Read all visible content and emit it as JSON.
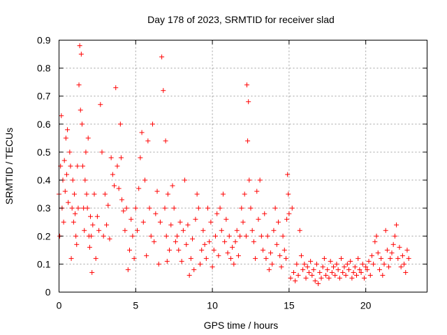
{
  "chart_data": {
    "type": "scatter",
    "title": "Day 178 of 2023, SRMTID for receiver slad",
    "xlabel": "GPS time / hours",
    "ylabel": "SRMTID / TECUs",
    "xlim": [
      0,
      24
    ],
    "ylim": [
      0,
      0.9
    ],
    "xticks": [
      0,
      5,
      10,
      15,
      20
    ],
    "xtick_labels": [
      "0",
      "5",
      "10",
      "15",
      "20"
    ],
    "yticks": [
      0,
      0.1,
      0.2,
      0.3,
      0.4,
      0.5,
      0.6,
      0.7,
      0.8,
      0.9
    ],
    "ytick_labels": [
      "0",
      "0.1",
      "0.2",
      "0.3",
      "0.4",
      "0.5",
      "0.6",
      "0.7",
      "0.8",
      "0.9"
    ],
    "grid": true,
    "marker": "+",
    "color": "#ff0000",
    "series": [
      {
        "name": "SRMTID",
        "x": [
          0.0,
          0.05,
          0.1,
          0.15,
          0.2,
          0.25,
          0.3,
          0.35,
          0.4,
          0.45,
          0.5,
          0.55,
          0.6,
          0.7,
          0.75,
          0.8,
          0.85,
          0.9,
          0.95,
          1.0,
          1.05,
          1.1,
          1.15,
          1.2,
          1.25,
          1.3,
          1.35,
          1.4,
          1.45,
          1.5,
          1.55,
          1.6,
          1.65,
          1.7,
          1.75,
          1.8,
          1.85,
          1.9,
          1.95,
          2.0,
          2.05,
          2.1,
          2.15,
          2.2,
          2.3,
          2.4,
          2.5,
          2.6,
          2.7,
          2.8,
          2.9,
          3.0,
          3.1,
          3.2,
          3.3,
          3.4,
          3.5,
          3.6,
          3.7,
          3.8,
          3.9,
          4.0,
          4.05,
          4.1,
          4.2,
          4.3,
          4.4,
          4.5,
          4.6,
          4.7,
          4.8,
          4.9,
          5.0,
          5.1,
          5.2,
          5.3,
          5.4,
          5.5,
          5.6,
          5.7,
          5.8,
          5.9,
          6.0,
          6.1,
          6.2,
          6.3,
          6.4,
          6.5,
          6.6,
          6.7,
          6.8,
          6.9,
          6.95,
          7.0,
          7.05,
          7.1,
          7.2,
          7.3,
          7.4,
          7.5,
          7.6,
          7.7,
          7.8,
          7.9,
          8.0,
          8.1,
          8.2,
          8.3,
          8.4,
          8.5,
          8.6,
          8.7,
          8.8,
          8.9,
          9.0,
          9.1,
          9.2,
          9.3,
          9.4,
          9.5,
          9.6,
          9.7,
          9.8,
          9.9,
          10.0,
          10.1,
          10.2,
          10.3,
          10.4,
          10.5,
          10.6,
          10.7,
          10.8,
          10.9,
          11.0,
          11.1,
          11.2,
          11.3,
          11.4,
          11.5,
          11.6,
          11.7,
          11.8,
          11.9,
          12.0,
          12.1,
          12.2,
          12.25,
          12.3,
          12.35,
          12.4,
          12.5,
          12.6,
          12.7,
          12.8,
          12.9,
          13.0,
          13.1,
          13.2,
          13.3,
          13.4,
          13.5,
          13.6,
          13.7,
          13.8,
          13.9,
          14.0,
          14.1,
          14.2,
          14.3,
          14.4,
          14.5,
          14.6,
          14.7,
          14.8,
          14.85,
          14.9,
          14.95,
          15.0,
          15.1,
          15.2,
          15.3,
          15.4,
          15.5,
          15.6,
          15.7,
          15.8,
          15.9,
          16.0,
          16.1,
          16.2,
          16.3,
          16.4,
          16.5,
          16.6,
          16.7,
          16.8,
          16.9,
          17.0,
          17.1,
          17.2,
          17.3,
          17.4,
          17.5,
          17.6,
          17.7,
          17.8,
          17.9,
          18.0,
          18.1,
          18.2,
          18.3,
          18.4,
          18.5,
          18.6,
          18.7,
          18.8,
          18.9,
          19.0,
          19.1,
          19.2,
          19.3,
          19.4,
          19.5,
          19.6,
          19.7,
          19.8,
          19.9,
          20.0,
          20.1,
          20.2,
          20.3,
          20.4,
          20.5,
          20.6,
          20.7,
          20.8,
          20.9,
          21.0,
          21.1,
          21.2,
          21.3,
          21.4,
          21.5,
          21.6,
          21.7,
          21.8,
          21.9,
          22.0,
          22.1,
          22.2,
          22.3,
          22.4,
          22.5,
          22.6,
          22.7,
          22.8
        ],
        "y": [
          0.35,
          0.2,
          0.45,
          0.63,
          0.3,
          0.4,
          0.25,
          0.47,
          0.36,
          0.55,
          0.42,
          0.58,
          0.32,
          0.5,
          0.45,
          0.12,
          0.3,
          0.4,
          0.25,
          0.35,
          0.28,
          0.2,
          0.17,
          0.45,
          0.3,
          0.74,
          0.88,
          0.65,
          0.85,
          0.6,
          0.45,
          0.3,
          0.22,
          0.4,
          0.5,
          0.35,
          0.3,
          0.55,
          0.2,
          0.16,
          0.27,
          0.2,
          0.07,
          0.24,
          0.35,
          0.12,
          0.27,
          0.22,
          0.67,
          0.5,
          0.2,
          0.35,
          0.24,
          0.31,
          0.19,
          0.48,
          0.42,
          0.38,
          0.73,
          0.45,
          0.37,
          0.6,
          0.48,
          0.33,
          0.29,
          0.22,
          0.3,
          0.08,
          0.15,
          0.26,
          0.2,
          0.12,
          0.3,
          0.22,
          0.37,
          0.48,
          0.57,
          0.25,
          0.4,
          0.13,
          0.54,
          0.3,
          0.2,
          0.6,
          0.18,
          0.28,
          0.36,
          0.1,
          0.25,
          0.84,
          0.72,
          0.3,
          0.54,
          0.2,
          0.11,
          0.35,
          0.15,
          0.24,
          0.38,
          0.3,
          0.18,
          0.2,
          0.15,
          0.25,
          0.11,
          0.22,
          0.4,
          0.17,
          0.24,
          0.06,
          0.12,
          0.19,
          0.08,
          0.26,
          0.35,
          0.3,
          0.1,
          0.15,
          0.22,
          0.17,
          0.12,
          0.3,
          0.18,
          0.25,
          0.09,
          0.15,
          0.2,
          0.28,
          0.13,
          0.3,
          0.22,
          0.35,
          0.18,
          0.26,
          0.14,
          0.2,
          0.12,
          0.16,
          0.1,
          0.18,
          0.22,
          0.13,
          0.2,
          0.3,
          0.25,
          0.35,
          0.2,
          0.74,
          0.54,
          0.68,
          0.4,
          0.3,
          0.22,
          0.18,
          0.12,
          0.36,
          0.26,
          0.4,
          0.2,
          0.15,
          0.28,
          0.12,
          0.2,
          0.08,
          0.14,
          0.1,
          0.22,
          0.3,
          0.17,
          0.25,
          0.13,
          0.09,
          0.2,
          0.15,
          0.12,
          0.26,
          0.42,
          0.35,
          0.28,
          0.05,
          0.3,
          0.07,
          0.04,
          0.1,
          0.06,
          0.22,
          0.13,
          0.08,
          0.1,
          0.05,
          0.09,
          0.07,
          0.11,
          0.06,
          0.08,
          0.04,
          0.1,
          0.03,
          0.07,
          0.05,
          0.09,
          0.12,
          0.06,
          0.08,
          0.05,
          0.11,
          0.07,
          0.09,
          0.06,
          0.1,
          0.08,
          0.05,
          0.12,
          0.07,
          0.09,
          0.06,
          0.1,
          0.08,
          0.11,
          0.05,
          0.07,
          0.09,
          0.06,
          0.12,
          0.08,
          0.07,
          0.1,
          0.05,
          0.09,
          0.08,
          0.11,
          0.06,
          0.13,
          0.1,
          0.18,
          0.2,
          0.14,
          0.08,
          0.12,
          0.06,
          0.1,
          0.22,
          0.15,
          0.09,
          0.12,
          0.14,
          0.17,
          0.2,
          0.24,
          0.12,
          0.16,
          0.09,
          0.13,
          0.1,
          0.07,
          0.15,
          0.12
        ]
      }
    ]
  }
}
